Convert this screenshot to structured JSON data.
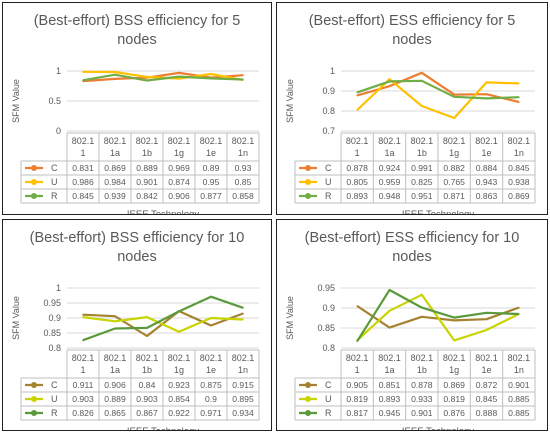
{
  "chart_data": [
    {
      "type": "line",
      "title": "(Best-effort) BSS efficiency for 5 nodes",
      "title_lines": [
        "(Best-effort) BSS efficiency for 5",
        "nodes"
      ],
      "xlabel": "IEEE Technology",
      "ylabel": "SFM Value",
      "ylim": [
        0,
        1
      ],
      "yticks": [
        "0",
        "0.5",
        "1"
      ],
      "categories": [
        "802.11",
        "802.11a",
        "802.11b",
        "802.11g",
        "802.11e",
        "802.11n"
      ],
      "category_lines": [
        [
          "802.1",
          "1"
        ],
        [
          "802.1",
          "1a"
        ],
        [
          "802.1",
          "1b"
        ],
        [
          "802.1",
          "1g"
        ],
        [
          "802.1",
          "1e"
        ],
        [
          "802.1",
          "1n"
        ]
      ],
      "legend": "data-table",
      "series": [
        {
          "name": "C",
          "color": "#ED7D31",
          "values": [
            0.831,
            0.869,
            0.889,
            0.969,
            0.89,
            0.93
          ],
          "labels": [
            "0.831",
            "0.869",
            "0.889",
            "0.969",
            "0.89",
            "0.93"
          ]
        },
        {
          "name": "U",
          "color": "#FFC000",
          "values": [
            0.986,
            0.984,
            0.901,
            0.874,
            0.95,
            0.85
          ],
          "labels": [
            "0.986",
            "0.984",
            "0.901",
            "0.874",
            "0.95",
            "0.85"
          ]
        },
        {
          "name": "R",
          "color": "#70AD47",
          "values": [
            0.845,
            0.939,
            0.842,
            0.906,
            0.877,
            0.858
          ],
          "labels": [
            "0.845",
            "0.939",
            "0.842",
            "0.906",
            "0.877",
            "0.858"
          ]
        }
      ]
    },
    {
      "type": "line",
      "title": "(Best-effort) ESS efficiency for 5 nodes",
      "title_lines": [
        "(Best-effort) ESS efficiency for 5",
        "nodes"
      ],
      "xlabel": "IEEE Technology",
      "ylabel": "SFM Value",
      "ylim": [
        0.7,
        1
      ],
      "yticks": [
        "0.7",
        "0.8",
        "0.9",
        "1"
      ],
      "categories": [
        "802.11",
        "802.11a",
        "802.11b",
        "802.11g",
        "802.11e",
        "802.11n"
      ],
      "category_lines": [
        [
          "802.1",
          "1"
        ],
        [
          "802.1",
          "1a"
        ],
        [
          "802.1",
          "1b"
        ],
        [
          "802.1",
          "1g"
        ],
        [
          "802.1",
          "1e"
        ],
        [
          "802.1",
          "1n"
        ]
      ],
      "legend": "data-table",
      "series": [
        {
          "name": "C",
          "color": "#ED7D31",
          "values": [
            0.878,
            0.924,
            0.991,
            0.882,
            0.884,
            0.845
          ],
          "labels": [
            "0.878",
            "0.924",
            "0.991",
            "0.882",
            "0.884",
            "0.845"
          ]
        },
        {
          "name": "U",
          "color": "#FFC000",
          "values": [
            0.805,
            0.959,
            0.825,
            0.765,
            0.943,
            0.938
          ],
          "labels": [
            "0.805",
            "0.959",
            "0.825",
            "0.765",
            "0.943",
            "0.938"
          ]
        },
        {
          "name": "R",
          "color": "#70AD47",
          "values": [
            0.893,
            0.948,
            0.951,
            0.871,
            0.863,
            0.869
          ],
          "labels": [
            "0.893",
            "0.948",
            "0.951",
            "0.871",
            "0.863",
            "0.869"
          ]
        }
      ]
    },
    {
      "type": "line",
      "title": "(Best-effort) BSS efficiency for 10 nodes",
      "title_lines": [
        "(Best-effort) BSS efficiency for 10",
        "nodes"
      ],
      "xlabel": "IEEE Technology",
      "ylabel": "SFM Value",
      "ylim": [
        0.8,
        1
      ],
      "yticks": [
        "0.8",
        "0.85",
        "0.9",
        "0.95",
        "1"
      ],
      "categories": [
        "802.11",
        "802.11a",
        "802.11b",
        "802.11g",
        "802.11e",
        "802.11n"
      ],
      "category_lines": [
        [
          "802.1",
          "1"
        ],
        [
          "802.1",
          "1a"
        ],
        [
          "802.1",
          "1b"
        ],
        [
          "802.1",
          "1g"
        ],
        [
          "802.1",
          "1e"
        ],
        [
          "802.1",
          "1n"
        ]
      ],
      "legend": "data-table",
      "series": [
        {
          "name": "C",
          "color": "#A5822F",
          "values": [
            0.911,
            0.906,
            0.84,
            0.923,
            0.875,
            0.915
          ],
          "labels": [
            "0.911",
            "0.906",
            "0.84",
            "0.923",
            "0.875",
            "0.915"
          ]
        },
        {
          "name": "U",
          "color": "#C8D400",
          "values": [
            0.903,
            0.889,
            0.903,
            0.854,
            0.9,
            0.895
          ],
          "labels": [
            "0.903",
            "0.889",
            "0.903",
            "0.854",
            "0.9",
            "0.895"
          ]
        },
        {
          "name": "R",
          "color": "#5B9A3C",
          "values": [
            0.826,
            0.865,
            0.867,
            0.922,
            0.971,
            0.934
          ],
          "labels": [
            "0.826",
            "0.865",
            "0.867",
            "0.922",
            "0.971",
            "0.934"
          ]
        }
      ]
    },
    {
      "type": "line",
      "title": "(Best-effort) ESS efficiency for 10 nodes",
      "title_lines": [
        "(Best-effort) ESS efficiency for 10",
        "nodes"
      ],
      "xlabel": "IEEE Technology",
      "ylabel": "SFM Value",
      "ylim": [
        0.8,
        0.95
      ],
      "yticks": [
        "0.8",
        "0.85",
        "0.9",
        "0.95"
      ],
      "categories": [
        "802.11",
        "802.11a",
        "802.11b",
        "802.11g",
        "802.11e",
        "802.11n"
      ],
      "category_lines": [
        [
          "802.1",
          "1"
        ],
        [
          "802.1",
          "1a"
        ],
        [
          "802.1",
          "1b"
        ],
        [
          "802.1",
          "1g"
        ],
        [
          "802.1",
          "1e"
        ],
        [
          "802.1",
          "1n"
        ]
      ],
      "legend": "data-table",
      "series": [
        {
          "name": "C",
          "color": "#A5822F",
          "values": [
            0.905,
            0.851,
            0.878,
            0.869,
            0.872,
            0.901
          ],
          "labels": [
            "0.905",
            "0.851",
            "0.878",
            "0.869",
            "0.872",
            "0.901"
          ]
        },
        {
          "name": "U",
          "color": "#C8D400",
          "values": [
            0.819,
            0.893,
            0.933,
            0.819,
            0.845,
            0.885
          ],
          "labels": [
            "0.819",
            "0.893",
            "0.933",
            "0.819",
            "0.845",
            "0.885"
          ]
        },
        {
          "name": "R",
          "color": "#5B9A3C",
          "values": [
            0.817,
            0.945,
            0.901,
            0.876,
            0.888,
            0.885
          ],
          "labels": [
            "0.817",
            "0.945",
            "0.901",
            "0.876",
            "0.888",
            "0.885"
          ]
        }
      ]
    }
  ]
}
